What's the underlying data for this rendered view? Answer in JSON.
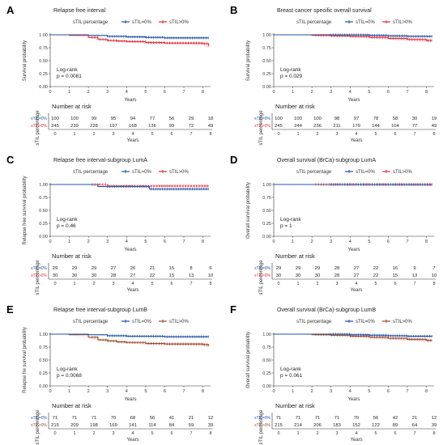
{
  "colors": {
    "sTIL0": "#2255aa",
    "sTILpos": "#e0303a",
    "sTILposB": "#9b4e2a",
    "band": "#f7c8cf",
    "axis": "#333333"
  },
  "x_ticks": [
    "0",
    "1",
    "2",
    "3",
    "4",
    "5",
    "6",
    "7",
    "8"
  ],
  "y_ticks": [
    "0.00",
    "0.25",
    "0.50",
    "0.75",
    "1.00"
  ],
  "chart_data": [
    {
      "letter": "A",
      "type": "line",
      "title": "Relapse free interval",
      "legend_title": "sTIL percentage",
      "xlabel": "Years",
      "ylabel": "Survival probability",
      "xlim": [
        0,
        8.4
      ],
      "ylim": [
        0,
        1
      ],
      "annotation": [
        "Log-rank",
        "p = 0.0081"
      ],
      "series": [
        {
          "name": "sTIL=0%",
          "x": [
            0,
            1,
            2,
            3,
            4,
            5,
            6,
            7,
            8,
            8.3
          ],
          "y": [
            1.0,
            1.0,
            0.99,
            0.97,
            0.96,
            0.95,
            0.94,
            0.94,
            0.94,
            0.94
          ]
        },
        {
          "name": "sTIL>0%",
          "x": [
            0,
            1,
            2,
            2.5,
            3,
            3.5,
            4,
            5,
            6,
            7,
            8,
            8.3
          ],
          "y": [
            1.0,
            0.99,
            0.95,
            0.91,
            0.89,
            0.88,
            0.87,
            0.85,
            0.84,
            0.84,
            0.83,
            0.78
          ]
        }
      ],
      "risk_title": "Number at risk",
      "risk_ylabel": "sTIL percentage",
      "risk_labels": [
        "sTIL=0%",
        "sTIL>0%"
      ],
      "risk": [
        [
          "100",
          "100",
          "99",
          "95",
          "94",
          "77",
          "56",
          "29",
          "18"
        ],
        [
          "245",
          "239",
          "228",
          "197",
          "168",
          "136",
          "99",
          "72",
          "49"
        ]
      ]
    },
    {
      "letter": "B",
      "type": "line",
      "title": "Breast cancer specific overall survival",
      "legend_title": "sTIL percentage",
      "xlabel": "Years",
      "ylabel": "Survival probability",
      "xlim": [
        0,
        8.4
      ],
      "ylim": [
        0,
        1
      ],
      "annotation": [
        "Log-rank",
        "p = 0.029"
      ],
      "series": [
        {
          "name": "sTIL=0%",
          "x": [
            0,
            1,
            2,
            3,
            4,
            5,
            6,
            7,
            8,
            8.3
          ],
          "y": [
            1.0,
            1.0,
            1.0,
            1.0,
            1.0,
            0.99,
            0.98,
            0.97,
            0.97,
            0.97
          ]
        },
        {
          "name": "sTIL>0%",
          "x": [
            0,
            1,
            2,
            3,
            4,
            5,
            6,
            7,
            8,
            8.3
          ],
          "y": [
            1.0,
            1.0,
            0.99,
            0.98,
            0.97,
            0.95,
            0.93,
            0.91,
            0.89,
            0.89
          ]
        }
      ],
      "risk_title": "Number at risk",
      "risk_ylabel": "sTIL percentage",
      "risk_labels": [
        "sTIL=0%",
        "sTIL>0%"
      ],
      "risk": [
        [
          "100",
          "100",
          "100",
          "98",
          "97",
          "78",
          "58",
          "30",
          "19"
        ],
        [
          "245",
          "244",
          "236",
          "211",
          "179",
          "144",
          "104",
          "77",
          "49"
        ]
      ]
    },
    {
      "letter": "C",
      "type": "line",
      "title": "Relapse free interval-subgroup LumA",
      "legend_title": "sTIL percentage",
      "xlabel": "Years",
      "ylabel": "Relapse free survival probability",
      "xlim": [
        0,
        8.4
      ],
      "ylim": [
        0,
        1
      ],
      "annotation": [
        "Log-rank",
        "p = 0.46"
      ],
      "series": [
        {
          "name": "sTIL=0%",
          "x": [
            0,
            1,
            2,
            2.5,
            3,
            4,
            5,
            5.2,
            6,
            7,
            8,
            8.3
          ],
          "y": [
            1.0,
            1.0,
            1.0,
            0.96,
            0.96,
            0.96,
            0.96,
            0.91,
            0.91,
            0.91,
            0.91,
            0.91
          ]
        },
        {
          "name": "sTIL>0%",
          "x": [
            0,
            1,
            2,
            3,
            4,
            5,
            6,
            7,
            8,
            8.3
          ],
          "y": [
            1.0,
            1.0,
            1.0,
            0.97,
            0.97,
            0.97,
            0.97,
            0.97,
            0.97,
            0.97
          ]
        }
      ],
      "risk_title": "Number at risk",
      "risk_ylabel": "sTIL percentage",
      "risk_labels": [
        "sTIL=0%",
        "sTIL>0%"
      ],
      "risk": [
        [
          "29",
          "29",
          "29",
          "27",
          "26",
          "21",
          "15",
          "8",
          "6"
        ],
        [
          "30",
          "30",
          "30",
          "28",
          "27",
          "22",
          "15",
          "13",
          "10"
        ]
      ]
    },
    {
      "letter": "D",
      "type": "line",
      "title": "Overall survival (BrCa)-subgroup LumA",
      "legend_title": "sTIL percentage",
      "xlabel": "Years",
      "ylabel": "Overall survival probability",
      "xlim": [
        0,
        8.4
      ],
      "ylim": [
        0,
        1
      ],
      "annotation": [
        "Log-rank",
        "p = 1"
      ],
      "series": [
        {
          "name": "sTIL=0%",
          "x": [
            0,
            1,
            2,
            3,
            4,
            5,
            6,
            7,
            8,
            8.3
          ],
          "y": [
            1.0,
            1.0,
            1.0,
            1.0,
            1.0,
            1.0,
            1.0,
            1.0,
            1.0,
            1.0
          ]
        },
        {
          "name": "sTIL>0%",
          "x": [
            0,
            1,
            2,
            3,
            4,
            5,
            6,
            7,
            8,
            8.3
          ],
          "y": [
            1.0,
            1.0,
            1.0,
            1.0,
            1.0,
            1.0,
            1.0,
            1.0,
            1.0,
            1.0
          ]
        }
      ],
      "risk_title": "Number at risk",
      "risk_ylabel": "sTIL percentage",
      "risk_labels": [
        "sTIL=0%",
        "sTIL>0%"
      ],
      "risk": [
        [
          "29",
          "29",
          "29",
          "28",
          "27",
          "22",
          "16",
          "9",
          "7"
        ],
        [
          "30",
          "30",
          "30",
          "28",
          "27",
          "22",
          "15",
          "13",
          "10"
        ]
      ]
    },
    {
      "letter": "E",
      "type": "line",
      "title": "Relapse free interval-subgroup LumB",
      "legend_title": "sTIL percentage",
      "xlabel": "Years",
      "ylabel": "Relapse fre survival probability",
      "xlim": [
        0,
        8.4
      ],
      "ylim": [
        0,
        1
      ],
      "annotation": [
        "Log-rank",
        "p = 0.0068"
      ],
      "series": [
        {
          "name": "sTIL=0%",
          "x": [
            0,
            1,
            2,
            3,
            4,
            5,
            6,
            7,
            8,
            8.3
          ],
          "y": [
            1.0,
            1.0,
            0.99,
            0.97,
            0.96,
            0.96,
            0.95,
            0.95,
            0.95,
            0.95
          ]
        },
        {
          "name": "sTIL>0%",
          "x": [
            0,
            1,
            2,
            2.5,
            3,
            3.5,
            4,
            5,
            6,
            7,
            8,
            8.3
          ],
          "y": [
            1.0,
            0.99,
            0.94,
            0.89,
            0.87,
            0.85,
            0.84,
            0.82,
            0.81,
            0.81,
            0.8,
            0.77
          ]
        }
      ],
      "risk_title": "Number at risk",
      "risk_ylabel": "sTIL percentage",
      "risk_labels": [
        "sTIL=0%",
        "sTIL>0%"
      ],
      "risk": [
        [
          "71",
          "71",
          "71",
          "70",
          "68",
          "56",
          "41",
          "21",
          "12"
        ],
        [
          "215",
          "209",
          "198",
          "169",
          "141",
          "114",
          "84",
          "59",
          "39"
        ]
      ]
    },
    {
      "letter": "F",
      "type": "line",
      "title": "Overall survival (BrCa)-subgroup LumB",
      "legend_title": "sTIL percentage",
      "xlabel": "Years",
      "ylabel": "Overall survival probability",
      "xlim": [
        0,
        8.4
      ],
      "ylim": [
        0,
        1
      ],
      "annotation": [
        "Log-rank",
        "p = 0.061"
      ],
      "series": [
        {
          "name": "sTIL=0%",
          "x": [
            0,
            1,
            2,
            3,
            4,
            5,
            6,
            7,
            8,
            8.3
          ],
          "y": [
            1.0,
            1.0,
            1.0,
            1.0,
            0.99,
            0.98,
            0.97,
            0.96,
            0.96,
            0.96
          ]
        },
        {
          "name": "sTIL>0%",
          "x": [
            0,
            1,
            2,
            3,
            4,
            5,
            6,
            7,
            8,
            8.3
          ],
          "y": [
            1.0,
            1.0,
            0.99,
            0.98,
            0.96,
            0.94,
            0.92,
            0.9,
            0.88,
            0.88
          ]
        }
      ],
      "risk_title": "Number at risk",
      "risk_ylabel": "sTIL percentage",
      "risk_labels": [
        "sTIL=0%",
        "sTIL>0%"
      ],
      "risk": [
        [
          "71",
          "71",
          "71",
          "71",
          "70",
          "56",
          "42",
          "21",
          "12"
        ],
        [
          "215",
          "214",
          "206",
          "183",
          "152",
          "122",
          "89",
          "64",
          "39"
        ]
      ]
    }
  ]
}
